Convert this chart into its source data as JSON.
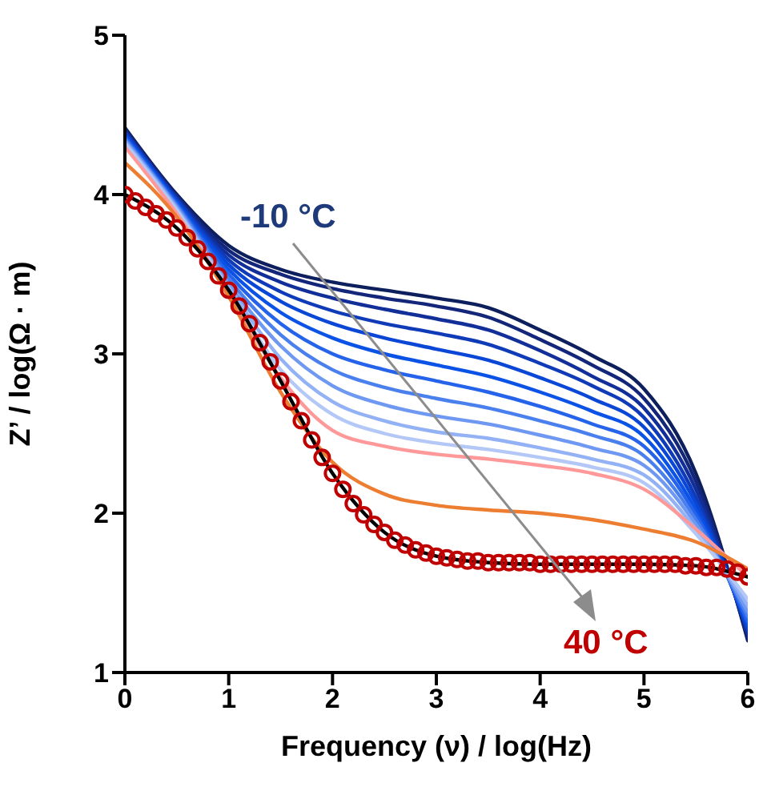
{
  "chart_data": {
    "type": "line",
    "xlabel": "Frequency (ν) / log(Hz)",
    "ylabel": "Z’ / log(Ω · m)",
    "xlim": [
      0,
      6
    ],
    "xticks": [
      0,
      1,
      2,
      3,
      4,
      5,
      6
    ],
    "ylim": [
      1,
      5
    ],
    "yticks": [
      1,
      2,
      3,
      4,
      5
    ],
    "marker": "none",
    "line_style": "solid",
    "x": [
      0,
      0.5,
      1,
      1.5,
      2,
      2.5,
      3,
      3.5,
      4,
      4.5,
      5,
      5.5,
      6
    ],
    "annotations": [
      "-10 °C",
      "40 °C"
    ],
    "series": [
      {
        "color": "#0d1f5c",
        "values": [
          4.42,
          4.0,
          3.68,
          3.53,
          3.45,
          3.4,
          3.35,
          3.29,
          3.15,
          2.99,
          2.78,
          2.25,
          1.2
        ]
      },
      {
        "color": "#13267a",
        "values": [
          4.41,
          3.99,
          3.65,
          3.5,
          3.41,
          3.35,
          3.3,
          3.23,
          3.09,
          2.93,
          2.72,
          2.2,
          1.22
        ]
      },
      {
        "color": "#122e99",
        "values": [
          4.4,
          3.98,
          3.62,
          3.45,
          3.35,
          3.28,
          3.22,
          3.15,
          3.02,
          2.86,
          2.66,
          2.15,
          1.24
        ]
      },
      {
        "color": "#0f3bb8",
        "values": [
          4.39,
          3.97,
          3.59,
          3.39,
          3.27,
          3.19,
          3.13,
          3.06,
          2.94,
          2.8,
          2.6,
          2.1,
          1.26
        ]
      },
      {
        "color": "#0a47d6",
        "values": [
          4.38,
          3.96,
          3.56,
          3.33,
          3.19,
          3.1,
          3.03,
          2.96,
          2.85,
          2.72,
          2.54,
          2.06,
          1.28
        ]
      },
      {
        "color": "#0b52e6",
        "values": [
          4.37,
          3.95,
          3.53,
          3.26,
          3.1,
          3.0,
          2.93,
          2.86,
          2.76,
          2.64,
          2.48,
          2.02,
          1.3
        ]
      },
      {
        "color": "#2563ea",
        "values": [
          4.36,
          3.94,
          3.5,
          3.19,
          3.0,
          2.9,
          2.83,
          2.76,
          2.67,
          2.56,
          2.42,
          1.99,
          1.32
        ]
      },
      {
        "color": "#4a7fee",
        "values": [
          4.35,
          3.93,
          3.47,
          3.12,
          2.9,
          2.79,
          2.72,
          2.66,
          2.58,
          2.49,
          2.36,
          1.96,
          1.35
        ]
      },
      {
        "color": "#6f98f2",
        "values": [
          4.34,
          3.92,
          3.44,
          3.05,
          2.8,
          2.68,
          2.61,
          2.56,
          2.49,
          2.41,
          2.3,
          1.93,
          1.38
        ]
      },
      {
        "color": "#93b2f5",
        "values": [
          4.33,
          3.91,
          3.42,
          2.97,
          2.7,
          2.58,
          2.51,
          2.47,
          2.41,
          2.34,
          2.24,
          1.9,
          1.42
        ]
      },
      {
        "color": "#b4c8f8",
        "values": [
          4.32,
          3.9,
          3.4,
          2.9,
          2.62,
          2.5,
          2.44,
          2.4,
          2.35,
          2.29,
          2.19,
          1.87,
          1.46
        ]
      },
      {
        "color": "#ff9999",
        "values": [
          4.3,
          3.88,
          3.38,
          2.85,
          2.52,
          2.42,
          2.37,
          2.34,
          2.3,
          2.25,
          2.15,
          1.9,
          1.6
        ]
      },
      {
        "color": "#ed7d31",
        "values": [
          4.2,
          3.86,
          3.36,
          2.76,
          2.32,
          2.12,
          2.05,
          2.02,
          2.0,
          1.96,
          1.9,
          1.82,
          1.65
        ]
      },
      {
        "type": "line",
        "color": "#000000",
        "x": [
          0,
          0.5,
          1,
          1.5,
          2,
          2.5,
          3,
          3.5,
          4,
          4.5,
          5,
          5.5,
          6
        ],
        "values": [
          4.0,
          3.79,
          3.4,
          2.83,
          2.25,
          1.88,
          1.73,
          1.69,
          1.68,
          1.68,
          1.68,
          1.67,
          1.6
        ]
      },
      {
        "type": "scatter",
        "marker": "circle",
        "color": "#c00000",
        "x": [
          0,
          0.1,
          0.2,
          0.3,
          0.4,
          0.5,
          0.6,
          0.7,
          0.8,
          0.9,
          1,
          1.1,
          1.2,
          1.3,
          1.4,
          1.5,
          1.6,
          1.7,
          1.8,
          1.9,
          2,
          2.1,
          2.2,
          2.3,
          2.4,
          2.5,
          2.6,
          2.7,
          2.8,
          2.9,
          3,
          3.1,
          3.2,
          3.3,
          3.4,
          3.5,
          3.6,
          3.7,
          3.8,
          3.9,
          4,
          4.1,
          4.2,
          4.3,
          4.4,
          4.5,
          4.6,
          4.7,
          4.8,
          4.9,
          5,
          5.1,
          5.2,
          5.3,
          5.4,
          5.5,
          5.6,
          5.7,
          5.8,
          5.9,
          6
        ],
        "values": [
          4.0,
          3.96,
          3.92,
          3.88,
          3.84,
          3.79,
          3.73,
          3.66,
          3.58,
          3.49,
          3.4,
          3.3,
          3.19,
          3.07,
          2.95,
          2.83,
          2.7,
          2.58,
          2.46,
          2.35,
          2.25,
          2.15,
          2.06,
          1.99,
          1.93,
          1.88,
          1.83,
          1.8,
          1.77,
          1.75,
          1.73,
          1.72,
          1.71,
          1.7,
          1.7,
          1.69,
          1.69,
          1.69,
          1.69,
          1.69,
          1.68,
          1.68,
          1.68,
          1.68,
          1.68,
          1.68,
          1.68,
          1.68,
          1.68,
          1.68,
          1.68,
          1.68,
          1.68,
          1.68,
          1.67,
          1.67,
          1.66,
          1.66,
          1.65,
          1.63,
          1.6
        ]
      }
    ]
  }
}
